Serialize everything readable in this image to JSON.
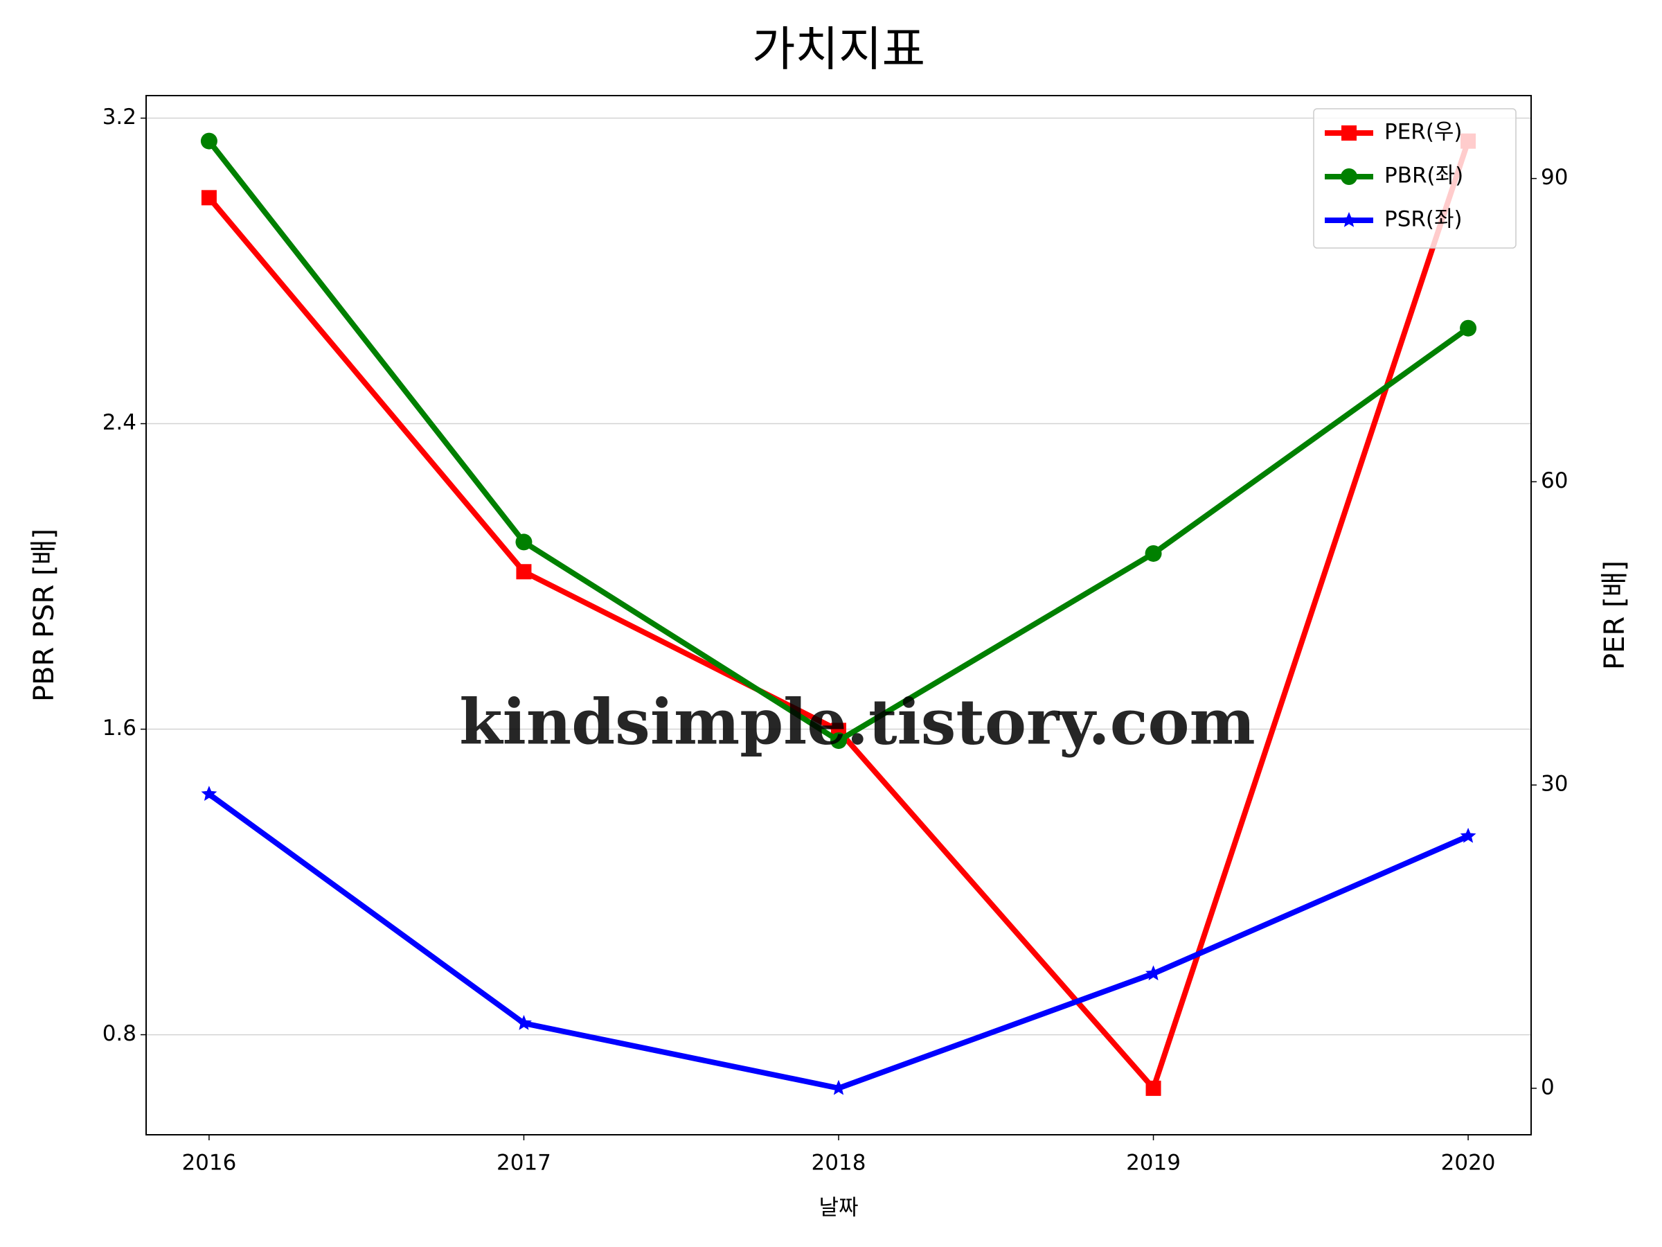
{
  "chart_data": {
    "type": "line",
    "title": "가치지표",
    "xlabel": "날짜",
    "ylabel": "PBR PSR [배]",
    "ylabel_color": "#008000",
    "y2label": "PER [배]",
    "y2label_color": "#ff0000",
    "watermark": "kindsimple.tistory.com",
    "x": [
      2016,
      2017,
      2018,
      2019,
      2020
    ],
    "xlim": [
      2015.8,
      2020.2
    ],
    "xticks": [
      2016,
      2017,
      2018,
      2019,
      2020
    ],
    "ylim": [
      0.538,
      3.259
    ],
    "yticks": [
      3.2,
      2.4,
      1.6,
      0.8
    ],
    "y2lim": [
      -4.6,
      98.2
    ],
    "y2ticks": [
      0,
      30,
      60,
      90
    ],
    "grid": true,
    "legend": "upper right",
    "series": [
      {
        "name": "PER(우)",
        "color": "#ff0000",
        "marker": "square",
        "axis": "y2",
        "values": [
          88.1,
          51.1,
          35.4,
          0,
          93.7
        ]
      },
      {
        "name": "PBR(좌)",
        "color": "#008000",
        "marker": "circle",
        "values": [
          3.14,
          2.09,
          1.57,
          2.06,
          2.65
        ]
      },
      {
        "name": "PSR(좌)",
        "color": "#0000ff",
        "marker": "star",
        "values": [
          1.43,
          0.83,
          0.66,
          0.96,
          1.32
        ]
      }
    ]
  }
}
